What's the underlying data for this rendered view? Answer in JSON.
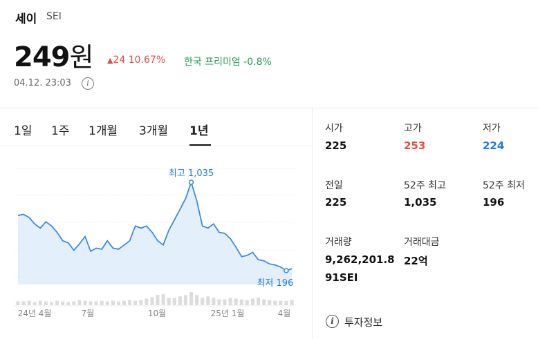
{
  "asset": {
    "name": "세이",
    "symbol": "SEI",
    "price_number": "249",
    "price_unit": "원",
    "change_arrow": "▲",
    "change_text": "24 10.67%",
    "premium_text": "한국 프리미엄 -0.8%",
    "timestamp": "04.12. 23:03",
    "info_glyph": "i"
  },
  "tabs": [
    {
      "label": "1일",
      "active": false
    },
    {
      "label": "1주",
      "active": false
    },
    {
      "label": "1개월",
      "active": false
    },
    {
      "label": "3개월",
      "active": false
    },
    {
      "label": "1년",
      "active": true
    }
  ],
  "stats": [
    {
      "label": "시가",
      "value": "225",
      "tone": "neutral"
    },
    {
      "label": "고가",
      "value": "253",
      "tone": "up"
    },
    {
      "label": "저가",
      "value": "224",
      "tone": "down"
    },
    {
      "label": "전일",
      "value": "225",
      "tone": "neutral"
    },
    {
      "label": "52주 최고",
      "value": "1,035",
      "tone": "neutral"
    },
    {
      "label": "52주 최저",
      "value": "196",
      "tone": "neutral"
    },
    {
      "label": "거래량",
      "value": "9,262,201.8",
      "value2": "91SEI",
      "tone": "neutral"
    },
    {
      "label": "거래대금",
      "value": "22억",
      "tone": "neutral"
    }
  ],
  "invest_info": {
    "label": "투자정보",
    "icon": "i"
  },
  "colors": {
    "up": "#e34a48",
    "down": "#1b7be6",
    "premium": "#1f9a4e",
    "line": "#3a8be0",
    "fill": "#dcebfa",
    "volume": "#dcdcdc"
  },
  "chart_data": {
    "type": "area",
    "x_labels": [
      "24년 4월",
      "7월",
      "10월",
      "25년 1월",
      "4월"
    ],
    "values": [
      720,
      730,
      700,
      640,
      600,
      660,
      620,
      560,
      480,
      460,
      390,
      450,
      520,
      380,
      410,
      400,
      480,
      410,
      400,
      440,
      480,
      620,
      600,
      620,
      560,
      480,
      440,
      580,
      680,
      780,
      880,
      1035,
      860,
      620,
      600,
      640,
      560,
      550,
      500,
      420,
      330,
      340,
      370,
      300,
      290,
      260,
      250,
      230,
      196,
      215
    ],
    "volumes": [
      5,
      5,
      6,
      4,
      6,
      5,
      4,
      6,
      5,
      4,
      5,
      7,
      6,
      5,
      5,
      6,
      5,
      6,
      5,
      6,
      7,
      6,
      7,
      9,
      11,
      14,
      15,
      10,
      10,
      12,
      14,
      18,
      14,
      10,
      12,
      10,
      8,
      8,
      10,
      9,
      8,
      7,
      9,
      10,
      8,
      7,
      6,
      6,
      6,
      7
    ],
    "max_label": "최고 1,035",
    "min_label": "최저 196",
    "ylim": [
      0,
      1200
    ]
  }
}
